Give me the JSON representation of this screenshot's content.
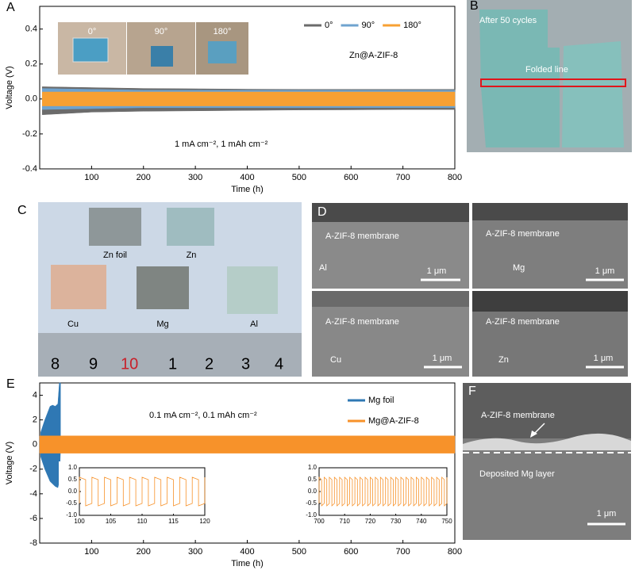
{
  "chart_data": [
    {
      "type": "band",
      "panel": "A",
      "xlabel": "Time (h)",
      "ylabel": "Voltage (V)",
      "annotations": [
        "Zn@A-ZIF-8",
        "1 mA cm⁻², 1 mAh cm⁻²"
      ],
      "inset_photos": [
        "0°",
        "90°",
        "180°"
      ],
      "xlim": [
        0,
        800
      ],
      "xticks": [
        100,
        200,
        300,
        400,
        500,
        600,
        700,
        800
      ],
      "ylim": [
        -0.4,
        0.53
      ],
      "yticks": [
        -0.4,
        -0.2,
        {
          "value": 0,
          "label": "0.0"
        },
        0.2,
        0.4
      ],
      "legend": "top-right",
      "legend_direction": "row",
      "series": [
        {
          "name": "0°",
          "color": "#6b6b6b",
          "x": [
            5,
            100,
            200,
            300,
            400,
            500,
            600,
            700,
            800
          ],
          "upper": [
            0.07,
            0.065,
            0.06,
            0.058,
            0.056,
            0.055,
            0.055,
            0.055,
            0.055
          ],
          "lower": [
            -0.09,
            -0.075,
            -0.07,
            -0.068,
            -0.065,
            -0.063,
            -0.062,
            -0.06,
            -0.06
          ]
        },
        {
          "name": "90°",
          "color": "#6fa3cf",
          "x": [
            5,
            100,
            200,
            300,
            400,
            500,
            600,
            700,
            800
          ],
          "upper": [
            0.06,
            0.055,
            0.05,
            0.05,
            0.05,
            0.05,
            0.05,
            0.05,
            0.05
          ],
          "lower": [
            -0.06,
            -0.055,
            -0.05,
            -0.05,
            -0.05,
            -0.05,
            -0.05,
            -0.05,
            -0.05
          ]
        },
        {
          "name": "180°",
          "color": "#f7a033",
          "x": [
            5,
            100,
            200,
            300,
            400,
            500,
            600,
            700,
            800
          ],
          "upper": [
            0.04,
            0.04,
            0.04,
            0.04,
            0.04,
            0.04,
            0.04,
            0.04,
            0.04
          ],
          "lower": [
            -0.04,
            -0.04,
            -0.04,
            -0.04,
            -0.04,
            -0.04,
            -0.04,
            -0.04,
            -0.04
          ]
        }
      ]
    },
    {
      "type": "band",
      "panel": "E",
      "xlabel": "Time (h)",
      "ylabel": "Voltage (V)",
      "annotations": [
        "0.1 mA cm⁻², 0.1 mAh cm⁻²"
      ],
      "xlim": [
        0,
        800
      ],
      "xticks": [
        100,
        200,
        300,
        400,
        500,
        600,
        700,
        800
      ],
      "ylim": [
        -8,
        5
      ],
      "yticks": [
        -8,
        -6,
        -4,
        -2,
        0,
        2,
        4
      ],
      "legend": "top-right",
      "legend_direction": "column",
      "series": [
        {
          "name": "Mg foil",
          "color": "#2f78b4",
          "x": [
            2,
            10,
            20,
            25,
            30,
            35,
            38,
            40
          ],
          "upper": [
            1,
            2,
            3.1,
            3.2,
            3.1,
            3.3,
            5,
            5
          ],
          "lower": [
            -1,
            -2,
            -3,
            -3.2,
            -3.4,
            -3.5,
            -3,
            -0.5
          ]
        },
        {
          "name": "Mg@A-ZIF-8",
          "color": "#f7922a",
          "x": [
            0,
            800
          ],
          "upper": [
            0.7,
            0.7
          ],
          "lower": [
            -0.7,
            -0.7
          ]
        }
      ]
    },
    {
      "type": "line",
      "color": "#f7922a",
      "xlim": [
        100,
        120
      ],
      "xticks": [
        100,
        105,
        110,
        115,
        120
      ],
      "ylim": [
        -1,
        1
      ],
      "yticks": [
        {
          "value": -1,
          "label": "-1.0"
        },
        -0.5,
        {
          "value": 0,
          "label": "0.0"
        },
        0.5,
        {
          "value": 1,
          "label": "1.0"
        }
      ],
      "x": [
        100,
        100,
        101,
        101,
        102,
        102,
        103,
        103,
        104,
        104,
        105,
        105,
        106,
        106,
        107,
        107,
        108,
        108,
        109,
        109,
        110,
        110,
        111,
        111,
        112,
        112,
        113,
        113,
        114,
        114,
        115,
        115,
        116,
        116,
        117,
        117,
        118,
        118,
        119,
        119,
        120,
        120
      ],
      "values": [
        -0.5,
        0.6,
        0.5,
        -0.6,
        -0.5,
        0.6,
        0.5,
        -0.6,
        -0.5,
        0.6,
        0.5,
        -0.6,
        -0.5,
        0.6,
        0.5,
        -0.6,
        -0.5,
        0.6,
        0.5,
        -0.6,
        -0.5,
        0.6,
        0.5,
        -0.6,
        -0.5,
        0.6,
        0.5,
        -0.6,
        -0.5,
        0.6,
        0.5,
        -0.6,
        -0.5,
        0.6,
        0.5,
        -0.6,
        -0.5,
        0.6,
        0.5,
        -0.6,
        -0.5,
        0.6
      ]
    },
    {
      "type": "line",
      "color": "#f7922a",
      "xlim": [
        700,
        750
      ],
      "xticks": [
        700,
        710,
        720,
        730,
        740,
        750
      ],
      "ylim": [
        -1,
        1
      ],
      "yticks": [
        {
          "value": -1,
          "label": "-1.0"
        },
        -0.5,
        {
          "value": 0,
          "label": "0.0"
        },
        0.5,
        {
          "value": 1,
          "label": "1.0"
        }
      ],
      "x": [
        700,
        700,
        701,
        701,
        702,
        702,
        703,
        703,
        704,
        704,
        705,
        705,
        706,
        706,
        707,
        707,
        708,
        708,
        709,
        709,
        710,
        710,
        711,
        711,
        712,
        712,
        713,
        713,
        714,
        714,
        715,
        715,
        716,
        716,
        717,
        717,
        718,
        718,
        719,
        719,
        720,
        720,
        721,
        721,
        722,
        722,
        723,
        723,
        724,
        724,
        725,
        725,
        726,
        726,
        727,
        727,
        728,
        728,
        729,
        729,
        730,
        730,
        731,
        731,
        732,
        732,
        733,
        733,
        734,
        734,
        735,
        735,
        736,
        736,
        737,
        737,
        738,
        738,
        739,
        739,
        740,
        740,
        741,
        741,
        742,
        742,
        743,
        743,
        744,
        744,
        745,
        745,
        746,
        746,
        747,
        747,
        748,
        748,
        749,
        749,
        750,
        750
      ],
      "values": [
        -0.5,
        0.6,
        0.5,
        -0.6,
        -0.5,
        0.6,
        0.5,
        -0.6,
        -0.5,
        0.6,
        0.5,
        -0.6,
        -0.5,
        0.6,
        0.5,
        -0.6,
        -0.5,
        0.6,
        0.5,
        -0.6,
        -0.5,
        0.6,
        0.5,
        -0.6,
        -0.5,
        0.6,
        0.5,
        -0.6,
        -0.5,
        0.6,
        0.5,
        -0.6,
        -0.5,
        0.6,
        0.5,
        -0.6,
        -0.5,
        0.6,
        0.5,
        -0.6,
        -0.5,
        0.6,
        0.5,
        -0.6,
        -0.5,
        0.6,
        0.5,
        -0.6,
        -0.5,
        0.6,
        0.5,
        -0.6,
        -0.5,
        0.6,
        0.5,
        -0.6,
        -0.5,
        0.6,
        0.5,
        -0.6,
        -0.5,
        0.6,
        0.5,
        -0.6,
        -0.5,
        0.6,
        0.5,
        -0.6,
        -0.5,
        0.6,
        0.5,
        -0.6,
        -0.5,
        0.6,
        0.5,
        -0.6,
        -0.5,
        0.6,
        0.5,
        -0.6,
        -0.5,
        0.6,
        0.5,
        -0.6,
        -0.5,
        0.6,
        0.5,
        -0.6,
        -0.5,
        0.6,
        0.5,
        -0.6,
        -0.5,
        0.6,
        0.5,
        -0.6,
        -0.5,
        0.6,
        0.5,
        -0.6,
        -0.5,
        0.6
      ]
    }
  ],
  "figure_panels": [
    {
      "letter": "B",
      "labels": [
        "After 50 cycles",
        "Folded line"
      ]
    },
    {
      "letter": "C",
      "labels": [
        "Zn  foil",
        "Zn",
        "Cu",
        "Mg",
        "Al"
      ],
      "ruler": [
        "8",
        "9",
        "10",
        "1",
        "2",
        "3",
        "4"
      ]
    },
    {
      "letter": "D",
      "images": [
        [
          "A-ZIF-8 membrane",
          "Al",
          "1 μm"
        ],
        [
          "A-ZIF-8 membrane",
          "Mg",
          "1 μm"
        ],
        [
          "A-ZIF-8 membrane",
          "Cu",
          "1 μm"
        ],
        [
          "A-ZIF-8 membrane",
          "Zn",
          "1 μm"
        ]
      ]
    },
    {
      "letter": "F",
      "labels": [
        "A-ZIF-8 membrane",
        "Deposited Mg layer",
        "1 μm"
      ]
    }
  ]
}
